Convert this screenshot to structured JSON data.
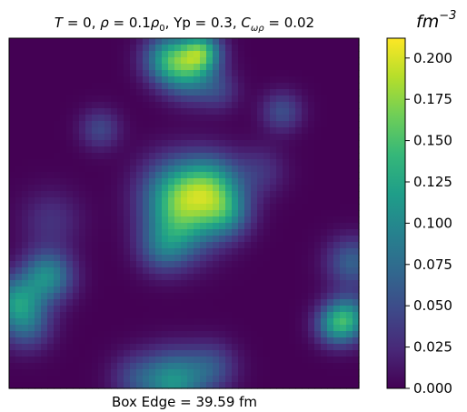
{
  "chart_data": {
    "type": "heatmap",
    "title_parts": {
      "t": "T",
      "t_eq": " = 0, ",
      "rho": "ρ",
      "rho_eq": " = 0.1",
      "rho0": "ρ",
      "rho0_sub": "0",
      "yp": ", Yp = 0.3, ",
      "c": "C",
      "c_sub": "ωρ",
      "c_eq": " = 0.02"
    },
    "xlabel": "Box Edge = 39.59 fm",
    "colorbar": {
      "label_base": "fm",
      "label_exp": "−3",
      "range": [
        0,
        0.212
      ],
      "ticks": [
        {
          "value": 0.0,
          "label": "0.000"
        },
        {
          "value": 0.025,
          "label": "0.025"
        },
        {
          "value": 0.05,
          "label": "0.050"
        },
        {
          "value": 0.075,
          "label": "0.075"
        },
        {
          "value": 0.1,
          "label": "0.100"
        },
        {
          "value": 0.125,
          "label": "0.125"
        },
        {
          "value": 0.15,
          "label": "0.150"
        },
        {
          "value": 0.175,
          "label": "0.175"
        },
        {
          "value": 0.2,
          "label": "0.200"
        }
      ]
    },
    "colormap": [
      "#440154",
      "#482878",
      "#3e4989",
      "#31688e",
      "#26828e",
      "#1f9e89",
      "#35b779",
      "#6ece58",
      "#b5de2b",
      "#fde725"
    ],
    "blobs": [
      {
        "x": 0.46,
        "y": 0.06,
        "peak": 0.125,
        "r": 0.05
      },
      {
        "x": 0.55,
        "y": 0.04,
        "peak": 0.13,
        "r": 0.04
      },
      {
        "x": 0.52,
        "y": 0.11,
        "peak": 0.07,
        "r": 0.05
      },
      {
        "x": 0.6,
        "y": 0.15,
        "peak": 0.035,
        "r": 0.04
      },
      {
        "x": 0.26,
        "y": 0.26,
        "peak": 0.045,
        "r": 0.04
      },
      {
        "x": 0.78,
        "y": 0.21,
        "peak": 0.05,
        "r": 0.04
      },
      {
        "x": 0.48,
        "y": 0.44,
        "peak": 0.105,
        "r": 0.07
      },
      {
        "x": 0.58,
        "y": 0.42,
        "peak": 0.105,
        "r": 0.06
      },
      {
        "x": 0.5,
        "y": 0.53,
        "peak": 0.09,
        "r": 0.07
      },
      {
        "x": 0.62,
        "y": 0.5,
        "peak": 0.08,
        "r": 0.05
      },
      {
        "x": 0.44,
        "y": 0.6,
        "peak": 0.055,
        "r": 0.05
      },
      {
        "x": 0.72,
        "y": 0.38,
        "peak": 0.03,
        "r": 0.05
      },
      {
        "x": 0.12,
        "y": 0.52,
        "peak": 0.03,
        "r": 0.06
      },
      {
        "x": 0.11,
        "y": 0.68,
        "peak": 0.1,
        "r": 0.05
      },
      {
        "x": 0.02,
        "y": 0.75,
        "peak": 0.095,
        "r": 0.05
      },
      {
        "x": 0.05,
        "y": 0.82,
        "peak": 0.06,
        "r": 0.05
      },
      {
        "x": 0.98,
        "y": 0.64,
        "peak": 0.065,
        "r": 0.05
      },
      {
        "x": 0.97,
        "y": 0.8,
        "peak": 0.1,
        "r": 0.045
      },
      {
        "x": 0.93,
        "y": 0.82,
        "peak": 0.07,
        "r": 0.04
      },
      {
        "x": 0.47,
        "y": 0.98,
        "peak": 0.105,
        "r": 0.06
      },
      {
        "x": 0.58,
        "y": 0.94,
        "peak": 0.05,
        "r": 0.05
      },
      {
        "x": 0.36,
        "y": 0.97,
        "peak": 0.04,
        "r": 0.05
      }
    ]
  }
}
